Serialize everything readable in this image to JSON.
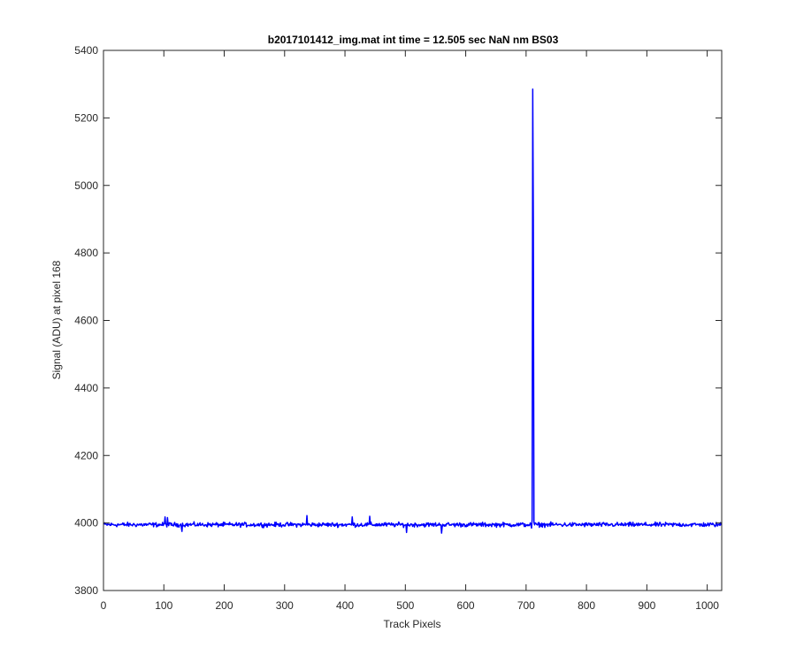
{
  "chart_data": {
    "type": "line",
    "title": "b2017101412_img.mat int time = 12.505 sec  NaN nm BS03",
    "xlabel": "Track Pixels",
    "ylabel": "Signal (ADU) at pixel 168",
    "xlim": [
      0,
      1024
    ],
    "ylim": [
      3800,
      5400
    ],
    "xticks": [
      0,
      100,
      200,
      300,
      400,
      500,
      600,
      700,
      800,
      900,
      1000
    ],
    "yticks": [
      3800,
      4000,
      4200,
      4400,
      4600,
      4800,
      5000,
      5200,
      5400
    ],
    "grid": false,
    "legend": "none",
    "series": [
      {
        "color": "#0000ff",
        "baseline": 3995,
        "noise_amplitude": 8,
        "x_range": [
          1,
          1024
        ],
        "notable_points": [
          {
            "x": 102,
            "y": 4018
          },
          {
            "x": 106,
            "y": 4016
          },
          {
            "x": 130,
            "y": 3975
          },
          {
            "x": 337,
            "y": 4022
          },
          {
            "x": 412,
            "y": 4018
          },
          {
            "x": 441,
            "y": 4020
          },
          {
            "x": 502,
            "y": 3972
          },
          {
            "x": 560,
            "y": 3970
          },
          {
            "x": 709,
            "y": 3985
          },
          {
            "x": 710,
            "y": 4010
          },
          {
            "x": 711,
            "y": 5285
          },
          {
            "x": 712,
            "y": 4900
          },
          {
            "x": 713,
            "y": 4002
          }
        ]
      }
    ]
  }
}
